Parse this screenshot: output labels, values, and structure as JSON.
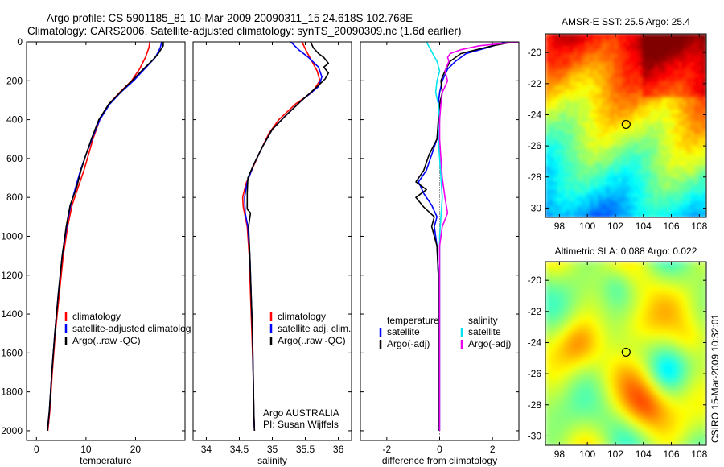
{
  "header": {
    "line1": "Argo profile: CS 5901185_81 10-Mar-2009 20090311_15 24.618S 102.768E",
    "line2": "Climatology: CARS2006. Satellite-adjusted climatology: synTS_20090309.nc (1.6d earlier)"
  },
  "side_note": "CSIRO 15-Mar-2009 10:32:01",
  "colors": {
    "climatology": "#ff0000",
    "satellite": "#0000ff",
    "argo": "#000000",
    "sat_salinity": "#00e5ee",
    "argo_salinity": "#ee00ee"
  },
  "chart_data": [
    {
      "type": "line",
      "id": "temperature",
      "xlabel": "temperature",
      "ylabel": "",
      "xlim": [
        -2,
        30
      ],
      "ylim": [
        0,
        2050
      ],
      "y_reversed": true,
      "xticks": [
        0,
        10,
        20
      ],
      "yticks": [
        0,
        200,
        400,
        600,
        800,
        1000,
        1200,
        1400,
        1600,
        1800,
        2000
      ],
      "legend": [
        "climatology",
        "satellite-adjusted climatolog",
        "Argo(..raw -QC)"
      ],
      "legend_placement": "lower-right",
      "series": [
        {
          "name": "climatology",
          "color": "#ff0000",
          "points": [
            [
              22.9,
              0
            ],
            [
              22.7,
              30
            ],
            [
              22.0,
              80
            ],
            [
              20.8,
              140
            ],
            [
              19.2,
              200
            ],
            [
              16.8,
              260
            ],
            [
              14.6,
              320
            ],
            [
              12.8,
              400
            ],
            [
              11.4,
              500
            ],
            [
              10.5,
              580
            ],
            [
              9.6,
              660
            ],
            [
              8.4,
              750
            ],
            [
              7.2,
              840
            ],
            [
              6.3,
              950
            ],
            [
              5.4,
              1100
            ],
            [
              4.6,
              1300
            ],
            [
              3.8,
              1500
            ],
            [
              3.2,
              1700
            ],
            [
              2.7,
              1900
            ],
            [
              2.3,
              2000
            ]
          ]
        },
        {
          "name": "satellite-adjusted climatolog",
          "color": "#0000ff",
          "points": [
            [
              25.3,
              0
            ],
            [
              25.0,
              30
            ],
            [
              24.0,
              80
            ],
            [
              21.8,
              140
            ],
            [
              19.6,
              200
            ],
            [
              17.0,
              260
            ],
            [
              14.8,
              320
            ],
            [
              12.8,
              400
            ],
            [
              11.2,
              500
            ],
            [
              10.0,
              580
            ],
            [
              8.9,
              660
            ],
            [
              7.9,
              750
            ],
            [
              6.9,
              840
            ],
            [
              6.1,
              950
            ],
            [
              5.2,
              1100
            ],
            [
              4.4,
              1300
            ],
            [
              3.7,
              1500
            ],
            [
              3.1,
              1700
            ],
            [
              2.6,
              1900
            ],
            [
              2.2,
              2000
            ]
          ]
        },
        {
          "name": "Argo(..raw -QC)",
          "color": "#000000",
          "points": [
            [
              25.6,
              0
            ],
            [
              25.6,
              20
            ],
            [
              24.6,
              60
            ],
            [
              23.6,
              90
            ],
            [
              21.2,
              150
            ],
            [
              19.3,
              200
            ],
            [
              16.9,
              260
            ],
            [
              14.6,
              320
            ],
            [
              12.6,
              400
            ],
            [
              11.1,
              500
            ],
            [
              10.0,
              580
            ],
            [
              9.0,
              660
            ],
            [
              8.1,
              750
            ],
            [
              6.8,
              840
            ],
            [
              6.0,
              950
            ],
            [
              5.2,
              1100
            ],
            [
              4.4,
              1300
            ],
            [
              3.7,
              1500
            ],
            [
              3.1,
              1700
            ],
            [
              2.6,
              1900
            ],
            [
              2.2,
              2000
            ]
          ]
        }
      ]
    },
    {
      "type": "line",
      "id": "salinity",
      "xlabel": "salinity",
      "ylabel": "",
      "xlim": [
        33.8,
        36.2
      ],
      "ylim": [
        0,
        2050
      ],
      "y_reversed": true,
      "xticks": [
        34,
        34.5,
        35,
        35.5,
        36
      ],
      "legend": [
        "climatology",
        "satellite adj. clim.",
        "Argo(..raw -QC)"
      ],
      "legend_placement": "lower-right",
      "annotation": [
        "Argo AUSTRALIA",
        "PI: Susan Wijffels"
      ],
      "series": [
        {
          "name": "climatology",
          "color": "#ff0000",
          "points": [
            [
              35.45,
              0
            ],
            [
              35.52,
              50
            ],
            [
              35.6,
              100
            ],
            [
              35.68,
              150
            ],
            [
              35.72,
              200
            ],
            [
              35.6,
              260
            ],
            [
              35.35,
              320
            ],
            [
              35.1,
              400
            ],
            [
              34.95,
              470
            ],
            [
              34.82,
              560
            ],
            [
              34.7,
              650
            ],
            [
              34.6,
              730
            ],
            [
              34.55,
              800
            ],
            [
              34.56,
              850
            ],
            [
              34.62,
              950
            ],
            [
              34.65,
              1100
            ],
            [
              34.67,
              1300
            ],
            [
              34.69,
              1500
            ],
            [
              34.71,
              1700
            ],
            [
              34.72,
              1900
            ],
            [
              34.73,
              2000
            ]
          ]
        },
        {
          "name": "satellite adj. clim.",
          "color": "#0000ff",
          "points": [
            [
              35.28,
              0
            ],
            [
              35.4,
              40
            ],
            [
              35.55,
              80
            ],
            [
              35.7,
              130
            ],
            [
              35.75,
              180
            ],
            [
              35.7,
              230
            ],
            [
              35.45,
              300
            ],
            [
              35.2,
              380
            ],
            [
              35.0,
              450
            ],
            [
              34.85,
              540
            ],
            [
              34.72,
              630
            ],
            [
              34.62,
              720
            ],
            [
              34.58,
              800
            ],
            [
              34.59,
              880
            ],
            [
              34.63,
              950
            ],
            [
              34.66,
              1100
            ],
            [
              34.68,
              1300
            ],
            [
              34.7,
              1500
            ],
            [
              34.71,
              1700
            ],
            [
              34.72,
              1900
            ],
            [
              34.73,
              2000
            ]
          ]
        },
        {
          "name": "Argo(..raw -QC)",
          "color": "#000000",
          "points": [
            [
              35.58,
              0
            ],
            [
              35.62,
              30
            ],
            [
              35.7,
              60
            ],
            [
              35.78,
              80
            ],
            [
              35.85,
              110
            ],
            [
              35.78,
              130
            ],
            [
              35.85,
              160
            ],
            [
              35.8,
              190
            ],
            [
              35.68,
              230
            ],
            [
              35.45,
              300
            ],
            [
              35.2,
              380
            ],
            [
              35.0,
              450
            ],
            [
              34.85,
              540
            ],
            [
              34.72,
              630
            ],
            [
              34.63,
              700
            ],
            [
              34.62,
              780
            ],
            [
              34.62,
              860
            ],
            [
              34.67,
              880
            ],
            [
              34.64,
              950
            ],
            [
              34.66,
              1100
            ],
            [
              34.68,
              1300
            ],
            [
              34.7,
              1500
            ],
            [
              34.71,
              1700
            ],
            [
              34.72,
              1900
            ],
            [
              34.73,
              2000
            ]
          ]
        }
      ]
    },
    {
      "type": "line",
      "id": "difference",
      "xlabel": "difference from climatology",
      "ylabel": "",
      "xlim": [
        -3,
        3
      ],
      "ylim": [
        0,
        2050
      ],
      "y_reversed": true,
      "xticks": [
        -2,
        0,
        2
      ],
      "legend_left": {
        "title": "temperature",
        "items": [
          "satellite",
          "Argo(-adj)"
        ]
      },
      "legend_right": {
        "title": "salinity",
        "items": [
          "satellite",
          "Argo(-adj)"
        ]
      },
      "legend_placement": "lower-center",
      "series": [
        {
          "name": "temperature satellite",
          "color": "#0000ff",
          "points": [
            [
              2.5,
              0
            ],
            [
              1.8,
              30
            ],
            [
              1.0,
              60
            ],
            [
              0.6,
              100
            ],
            [
              0.3,
              140
            ],
            [
              0.1,
              200
            ],
            [
              0.0,
              260
            ],
            [
              -0.05,
              320
            ],
            [
              0.0,
              400
            ],
            [
              -0.1,
              500
            ],
            [
              -0.3,
              580
            ],
            [
              -0.5,
              660
            ],
            [
              -0.8,
              720
            ],
            [
              -0.6,
              780
            ],
            [
              -0.3,
              840
            ],
            [
              -0.1,
              900
            ],
            [
              -0.2,
              950
            ],
            [
              -0.1,
              1050
            ],
            [
              -0.05,
              1200
            ],
            [
              -0.05,
              1500
            ],
            [
              -0.05,
              2000
            ]
          ]
        },
        {
          "name": "temperature Argo(-adj)",
          "color": "#000000",
          "points": [
            [
              2.8,
              0
            ],
            [
              2.0,
              20
            ],
            [
              0.8,
              60
            ],
            [
              0.4,
              100
            ],
            [
              0.2,
              150
            ],
            [
              0.05,
              200
            ],
            [
              0.1,
              260
            ],
            [
              0.0,
              320
            ],
            [
              -0.05,
              400
            ],
            [
              -0.1,
              500
            ],
            [
              -0.4,
              580
            ],
            [
              -0.6,
              660
            ],
            [
              -0.9,
              720
            ],
            [
              -0.5,
              760
            ],
            [
              -0.9,
              800
            ],
            [
              -0.6,
              850
            ],
            [
              -0.2,
              900
            ],
            [
              -0.3,
              950
            ],
            [
              -0.1,
              1050
            ],
            [
              -0.05,
              1200
            ],
            [
              -0.05,
              1500
            ],
            [
              -0.05,
              2000
            ]
          ]
        },
        {
          "name": "salinity satellite",
          "color": "#00e5ee",
          "points": [
            [
              -0.5,
              0
            ],
            [
              -0.3,
              50
            ],
            [
              -0.1,
              100
            ],
            [
              0.0,
              150
            ],
            [
              -0.1,
              200
            ],
            [
              -0.15,
              260
            ],
            [
              -0.05,
              320
            ],
            [
              0.0,
              400
            ],
            [
              -0.05,
              500
            ],
            [
              0.0,
              600
            ],
            [
              0.05,
              700
            ],
            [
              0.1,
              800
            ],
            [
              0.05,
              900
            ],
            [
              0.0,
              1000
            ],
            [
              0.0,
              1200
            ],
            [
              0.0,
              1500
            ],
            [
              0.0,
              2000
            ]
          ]
        },
        {
          "name": "salinity Argo(-adj)",
          "color": "#ee00ee",
          "points": [
            [
              3.0,
              0
            ],
            [
              1.5,
              20
            ],
            [
              0.8,
              40
            ],
            [
              0.4,
              60
            ],
            [
              0.3,
              80
            ],
            [
              0.35,
              100
            ],
            [
              0.2,
              150
            ],
            [
              0.3,
              200
            ],
            [
              0.1,
              260
            ],
            [
              0.05,
              320
            ],
            [
              0.0,
              400
            ],
            [
              0.0,
              500
            ],
            [
              0.05,
              600
            ],
            [
              0.1,
              700
            ],
            [
              0.2,
              800
            ],
            [
              0.3,
              880
            ],
            [
              0.1,
              950
            ],
            [
              0.0,
              1050
            ],
            [
              0.0,
              1200
            ],
            [
              0.0,
              1500
            ],
            [
              0.0,
              2000
            ]
          ]
        }
      ]
    },
    {
      "type": "heatmap",
      "id": "sst",
      "title": "AMSR-E SST: 25.5 Argo: 25.4",
      "xlim": [
        97,
        108.5
      ],
      "ylim": [
        -30.6,
        -18.8
      ],
      "xticks": [
        98,
        100,
        102,
        104,
        106,
        108
      ],
      "yticks": [
        -20,
        -22,
        -24,
        -26,
        -28,
        -30
      ],
      "marker": [
        102.768,
        -24.618
      ]
    },
    {
      "type": "heatmap",
      "id": "sla",
      "title": "Altimetric SLA: 0.088 Argo: 0.022",
      "xlim": [
        97,
        108.5
      ],
      "ylim": [
        -30.6,
        -18.8
      ],
      "xticks": [
        98,
        100,
        102,
        104,
        106,
        108
      ],
      "yticks": [
        -20,
        -22,
        -24,
        -26,
        -28,
        -30
      ],
      "marker": [
        102.768,
        -24.618
      ]
    }
  ]
}
